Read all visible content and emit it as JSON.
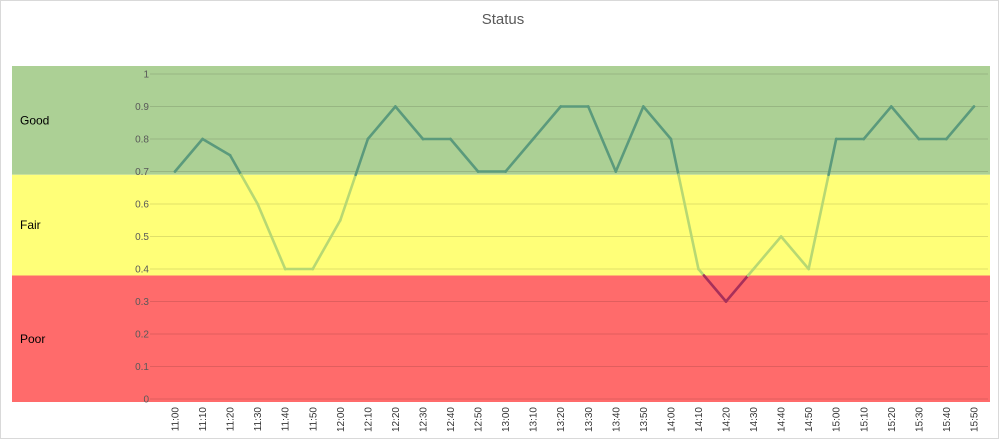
{
  "chart_data": {
    "type": "line",
    "title": "Status",
    "xlabel": "",
    "ylabel": "",
    "ylim": [
      0,
      1
    ],
    "y_ticks": [
      "0",
      "0.1",
      "0.2",
      "0.3",
      "0.4",
      "0.5",
      "0.6",
      "0.7",
      "0.8",
      "0.9",
      "1"
    ],
    "grid": true,
    "categories": [
      "11:00",
      "11:10",
      "11:20",
      "11:30",
      "11:40",
      "11:50",
      "12:00",
      "12:10",
      "12:20",
      "12:30",
      "12:40",
      "12:50",
      "13:00",
      "13:10",
      "13:20",
      "13:30",
      "13:40",
      "13:50",
      "14:00",
      "14:10",
      "14:20",
      "14:30",
      "14:40",
      "14:50",
      "15:00",
      "15:10",
      "15:20",
      "15:30",
      "15:40",
      "15:50"
    ],
    "values": [
      0.7,
      0.8,
      0.75,
      0.6,
      0.4,
      0.4,
      0.55,
      0.8,
      0.9,
      0.8,
      0.8,
      0.7,
      0.7,
      0.8,
      0.9,
      0.9,
      0.7,
      0.9,
      0.8,
      0.4,
      0.3,
      0.4,
      0.5,
      0.4,
      0.8,
      0.8,
      0.9,
      0.8,
      0.8,
      0.9
    ],
    "bands": [
      {
        "label": "Good",
        "from": 0.69,
        "to": 1.03,
        "color": "#acd095",
        "line_color": "#5b9a7c"
      },
      {
        "label": "Fair",
        "from": 0.38,
        "to": 0.69,
        "color": "#ffff78",
        "line_color": "#b7d873"
      },
      {
        "label": "Poor",
        "from": 0.0,
        "to": 0.38,
        "color": "#ff6b6b",
        "line_color": "#a8305a"
      }
    ]
  }
}
